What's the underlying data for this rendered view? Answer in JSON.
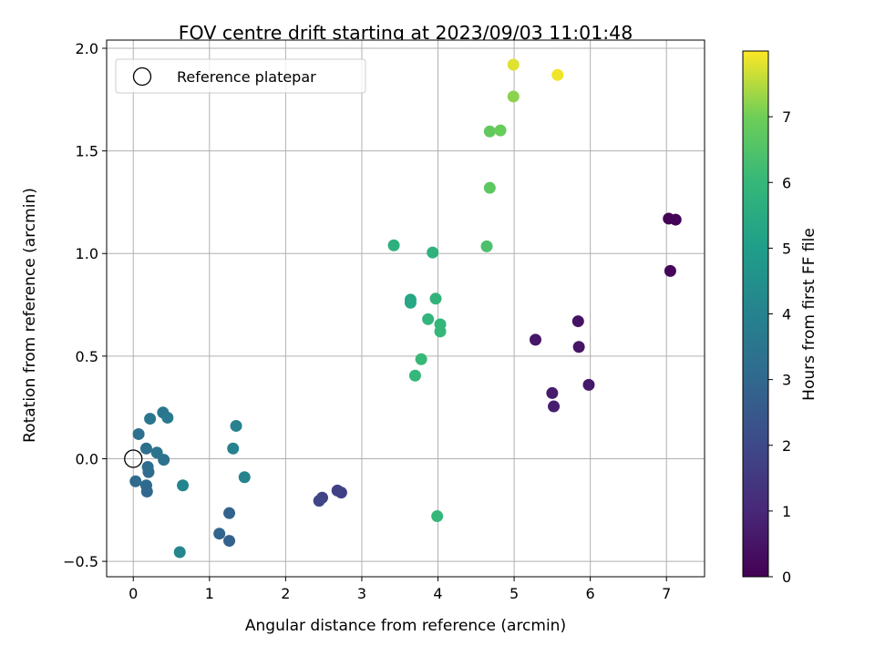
{
  "chart_data": {
    "type": "scatter",
    "title": "FOV centre drift starting at 2023/09/03 11:01:48",
    "xlabel": "Angular distance from reference (arcmin)",
    "ylabel": "Rotation from reference (arcmin)",
    "xlim": [
      -0.35,
      7.5
    ],
    "ylim": [
      -0.575,
      2.04
    ],
    "xticks": [
      0,
      1,
      2,
      3,
      4,
      5,
      6,
      7
    ],
    "xtick_labels": [
      "0",
      "1",
      "2",
      "3",
      "4",
      "5",
      "6",
      "7"
    ],
    "yticks": [
      -0.5,
      0.0,
      0.5,
      1.0,
      1.5,
      2.0
    ],
    "ytick_labels": [
      "−0.5",
      "0.0",
      "0.5",
      "1.0",
      "1.5",
      "2.0"
    ],
    "grid": true,
    "legend": {
      "placement": "top-left",
      "entries": [
        "Reference platepar"
      ]
    },
    "reference_point": {
      "name": "Reference platepar",
      "x": 0.0,
      "y": 0.0
    },
    "colorbar": {
      "label": "Hours from first FF file",
      "range": [
        0,
        8
      ],
      "ticks": [
        0,
        1,
        2,
        3,
        4,
        5,
        6,
        7
      ],
      "tick_labels": [
        "0",
        "1",
        "2",
        "3",
        "4",
        "5",
        "6",
        "7"
      ],
      "colormap": "viridis"
    },
    "points": [
      {
        "x": 7.03,
        "y": 1.17,
        "hours": 0.05
      },
      {
        "x": 7.12,
        "y": 1.165,
        "hours": 0.1
      },
      {
        "x": 7.05,
        "y": 0.915,
        "hours": 0.15
      },
      {
        "x": 5.84,
        "y": 0.67,
        "hours": 0.45
      },
      {
        "x": 5.85,
        "y": 0.545,
        "hours": 0.5
      },
      {
        "x": 5.28,
        "y": 0.58,
        "hours": 0.55
      },
      {
        "x": 5.98,
        "y": 0.36,
        "hours": 0.6
      },
      {
        "x": 5.5,
        "y": 0.32,
        "hours": 0.7
      },
      {
        "x": 5.52,
        "y": 0.255,
        "hours": 0.75
      },
      {
        "x": 2.73,
        "y": -0.165,
        "hours": 1.7
      },
      {
        "x": 2.68,
        "y": -0.155,
        "hours": 1.75
      },
      {
        "x": 2.48,
        "y": -0.19,
        "hours": 1.85
      },
      {
        "x": 2.44,
        "y": -0.205,
        "hours": 1.9
      },
      {
        "x": 1.26,
        "y": -0.4,
        "hours": 2.8
      },
      {
        "x": 1.26,
        "y": -0.265,
        "hours": 2.85
      },
      {
        "x": 1.13,
        "y": -0.365,
        "hours": 2.9
      },
      {
        "x": 0.18,
        "y": -0.16,
        "hours": 3.0
      },
      {
        "x": 0.17,
        "y": -0.13,
        "hours": 3.05
      },
      {
        "x": 0.03,
        "y": -0.11,
        "hours": 3.1
      },
      {
        "x": 0.2,
        "y": -0.065,
        "hours": 3.15
      },
      {
        "x": 0.19,
        "y": -0.04,
        "hours": 3.2
      },
      {
        "x": 0.17,
        "y": 0.05,
        "hours": 3.25
      },
      {
        "x": 0.07,
        "y": 0.12,
        "hours": 3.3
      },
      {
        "x": 0.4,
        "y": -0.005,
        "hours": 3.35
      },
      {
        "x": 0.31,
        "y": 0.03,
        "hours": 3.45
      },
      {
        "x": 0.22,
        "y": 0.195,
        "hours": 3.5
      },
      {
        "x": 0.39,
        "y": 0.225,
        "hours": 3.55
      },
      {
        "x": 0.45,
        "y": 0.2,
        "hours": 3.65
      },
      {
        "x": 1.35,
        "y": 0.16,
        "hours": 3.95
      },
      {
        "x": 1.31,
        "y": 0.05,
        "hours": 4.0
      },
      {
        "x": 1.46,
        "y": -0.09,
        "hours": 4.05
      },
      {
        "x": 0.65,
        "y": -0.13,
        "hours": 4.1
      },
      {
        "x": 0.61,
        "y": -0.455,
        "hours": 4.15
      },
      {
        "x": 3.64,
        "y": 0.775,
        "hours": 5.3
      },
      {
        "x": 3.64,
        "y": 0.76,
        "hours": 5.35
      },
      {
        "x": 3.42,
        "y": 1.04,
        "hours": 5.7
      },
      {
        "x": 3.93,
        "y": 1.005,
        "hours": 5.8
      },
      {
        "x": 3.97,
        "y": 0.78,
        "hours": 5.85
      },
      {
        "x": 3.87,
        "y": 0.68,
        "hours": 5.9
      },
      {
        "x": 4.03,
        "y": 0.655,
        "hours": 5.95
      },
      {
        "x": 4.03,
        "y": 0.62,
        "hours": 6.0
      },
      {
        "x": 3.78,
        "y": 0.485,
        "hours": 6.05
      },
      {
        "x": 3.7,
        "y": 0.405,
        "hours": 6.0
      },
      {
        "x": 3.99,
        "y": -0.28,
        "hours": 6.0
      },
      {
        "x": 4.64,
        "y": 1.035,
        "hours": 6.4
      },
      {
        "x": 4.68,
        "y": 1.32,
        "hours": 6.7
      },
      {
        "x": 4.68,
        "y": 1.595,
        "hours": 6.8
      },
      {
        "x": 4.82,
        "y": 1.6,
        "hours": 6.9
      },
      {
        "x": 4.99,
        "y": 1.765,
        "hours": 7.2
      },
      {
        "x": 4.99,
        "y": 1.92,
        "hours": 7.8
      },
      {
        "x": 5.57,
        "y": 1.87,
        "hours": 7.9
      }
    ]
  }
}
